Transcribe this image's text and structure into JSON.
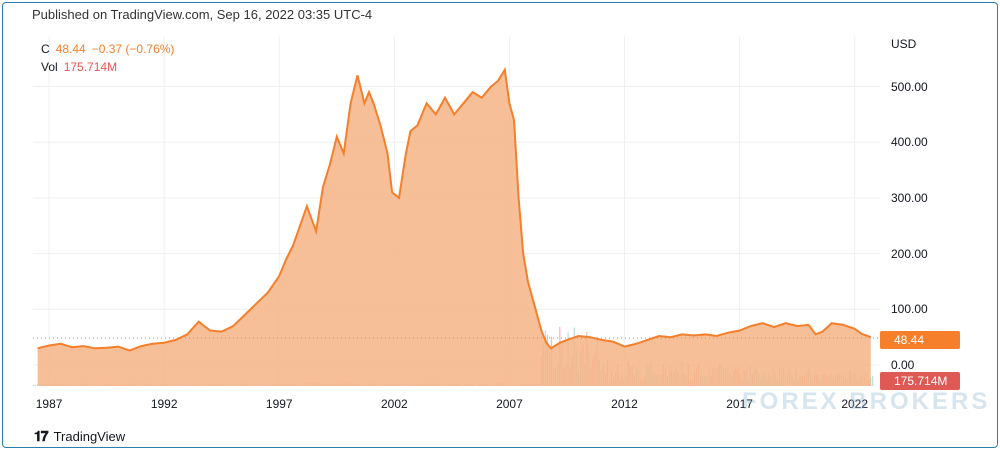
{
  "header": {
    "published": "Published on TradingView.com, Sep 16, 2022 03:35 UTC-4"
  },
  "legend": {
    "close_label": "C",
    "close_value": "48.44",
    "change": "−0.37 (−0.76%)",
    "vol_label": "Vol",
    "vol_value": "175.714M"
  },
  "price_axis": {
    "currency": "USD",
    "ticks": [
      "500.00",
      "400.00",
      "300.00",
      "200.00",
      "100.00",
      "0.00"
    ]
  },
  "badges": {
    "price": "48.44",
    "volume": "175.714M"
  },
  "colors": {
    "price_line": "#f57f2b",
    "area_fill": "#f5b486",
    "volume_up": "#a8d8cf",
    "volume_down": "#f4a9a6",
    "price_badge": "#f57f2b",
    "volume_badge": "#e05a55"
  },
  "watermark": "FOREX BROKERS",
  "footer": {
    "brand": "TradingView",
    "logo_icon": "tradingview-logo-icon"
  },
  "chart_data": {
    "type": "area",
    "title": "",
    "xlabel": "",
    "ylabel": "USD",
    "x_ticks": [
      "1987",
      "1992",
      "1997",
      "2002",
      "2007",
      "2012",
      "2017",
      "2022"
    ],
    "ylim": [
      0,
      560
    ],
    "last_price": 48.44,
    "series": [
      {
        "name": "C",
        "x": [
          1986.5,
          1987,
          1987.5,
          1988,
          1988.5,
          1989,
          1989.5,
          1990,
          1990.5,
          1991,
          1991.5,
          1992,
          1992.5,
          1993,
          1993.5,
          1993.8,
          1994,
          1994.5,
          1995,
          1995.5,
          1996,
          1996.5,
          1997,
          1997.3,
          1997.6,
          1997.9,
          1998.2,
          1998.6,
          1998.9,
          1999.2,
          1999.5,
          1999.8,
          2000.1,
          2000.4,
          2000.7,
          2000.9,
          2001.1,
          2001.4,
          2001.7,
          2001.9,
          2002.2,
          2002.5,
          2002.7,
          2003.0,
          2003.4,
          2003.8,
          2004.2,
          2004.6,
          2005.0,
          2005.4,
          2005.8,
          2006.2,
          2006.5,
          2006.8,
          2007.0,
          2007.2,
          2007.4,
          2007.6,
          2007.8,
          2008.0,
          2008.2,
          2008.4,
          2008.6,
          2008.8,
          2009.0,
          2009.2,
          2009.5,
          2010,
          2010.5,
          2011,
          2011.5,
          2012,
          2012.5,
          2013,
          2013.5,
          2014,
          2014.5,
          2015,
          2015.5,
          2016,
          2016.5,
          2017,
          2017.5,
          2018,
          2018.5,
          2019,
          2019.5,
          2020,
          2020.3,
          2020.6,
          2021,
          2021.5,
          2022,
          2022.3,
          2022.7
        ],
        "values": [
          30,
          35,
          38,
          32,
          34,
          30,
          31,
          33,
          26,
          34,
          38,
          40,
          45,
          55,
          78,
          68,
          62,
          60,
          70,
          90,
          110,
          130,
          160,
          190,
          215,
          250,
          285,
          240,
          320,
          360,
          410,
          380,
          470,
          520,
          470,
          490,
          470,
          430,
          380,
          310,
          300,
          380,
          420,
          430,
          470,
          450,
          480,
          450,
          470,
          490,
          480,
          500,
          510,
          530,
          470,
          440,
          300,
          200,
          150,
          120,
          90,
          60,
          40,
          30,
          35,
          40,
          45,
          52,
          50,
          45,
          42,
          33,
          38,
          45,
          52,
          50,
          55,
          53,
          55,
          52,
          58,
          62,
          70,
          75,
          68,
          75,
          70,
          72,
          55,
          60,
          75,
          72,
          65,
          56,
          50
        ]
      }
    ],
    "volume": {
      "name": "Vol",
      "last": "175.714M",
      "note": "volume histogram, highest around 2009–2010"
    }
  }
}
